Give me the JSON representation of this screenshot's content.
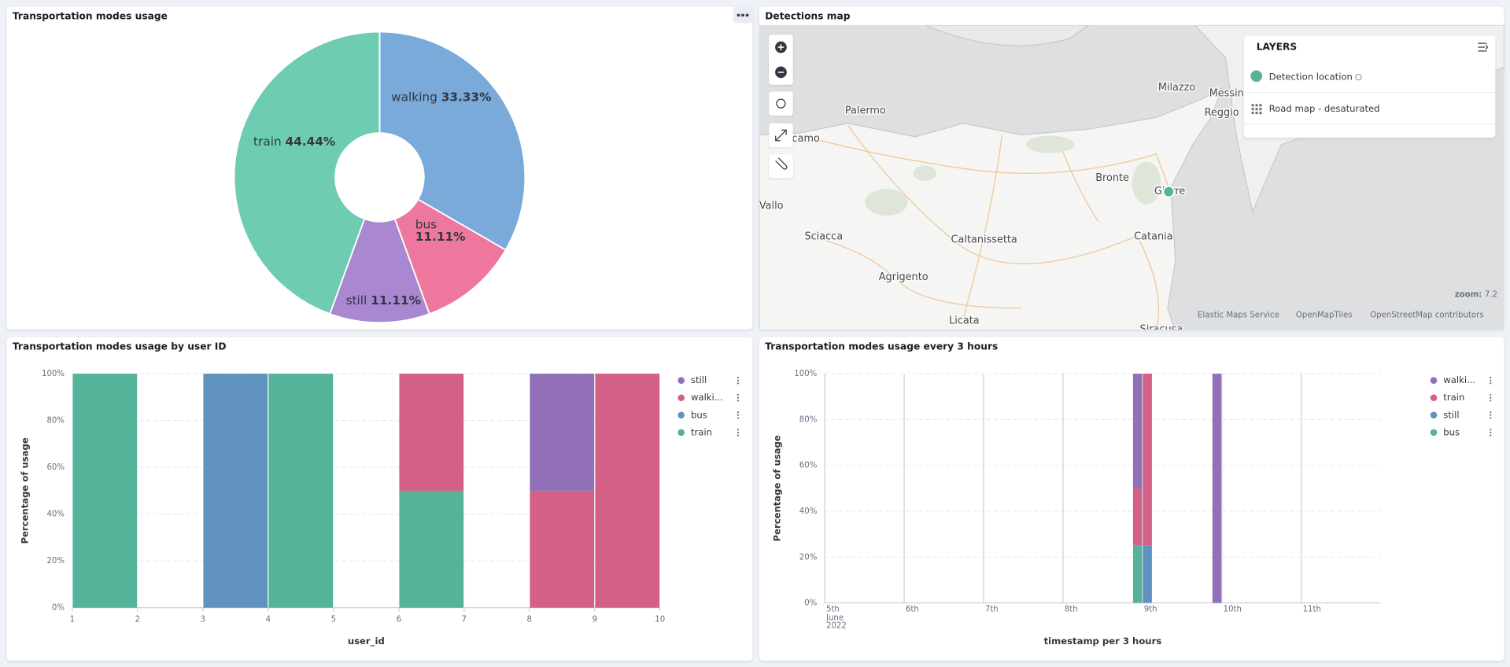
{
  "chart_data": [
    {
      "type": "pie",
      "title": "Transportation modes usage",
      "categories": [
        "walking",
        "bus",
        "still",
        "train"
      ],
      "values": [
        33.33,
        11.11,
        11.11,
        44.44
      ],
      "value_labels": [
        "33.33%",
        "11.11%",
        "11.11%",
        "44.44%"
      ],
      "colors": [
        "#79aad9",
        "#ee789d",
        "#a987d1",
        "#6dccb1"
      ],
      "donut": true
    },
    {
      "type": "histogram",
      "title": "Transportation modes usage by user ID",
      "bins": [
        1,
        2,
        3,
        4,
        5,
        6,
        7,
        8,
        9,
        10
      ],
      "series": [
        {
          "name": "still",
          "color": "#9170b8",
          "values": [
            null,
            null,
            null,
            null,
            null,
            null,
            null,
            50,
            null
          ]
        },
        {
          "name": "walki...",
          "color": "#d36086",
          "values": [
            null,
            null,
            null,
            null,
            null,
            50,
            null,
            50,
            100
          ]
        },
        {
          "name": "bus",
          "color": "#6092c0",
          "values": [
            null,
            null,
            100,
            null,
            null,
            null,
            null,
            null,
            null
          ]
        },
        {
          "name": "train",
          "color": "#54b399",
          "values": [
            100,
            null,
            null,
            100,
            null,
            50,
            null,
            null,
            null
          ]
        }
      ],
      "stacked": true,
      "xlabel": "user_id",
      "ylabel": "Percentage of usage",
      "xlim": [
        1,
        10
      ],
      "xticks": [
        1,
        2,
        3,
        4,
        5,
        6,
        7,
        8,
        9,
        10
      ],
      "ylim": [
        0,
        100
      ],
      "yticks": [
        {
          "value": 0,
          "label": "0%"
        },
        {
          "value": 20,
          "label": "20%"
        },
        {
          "value": 40,
          "label": "40%"
        },
        {
          "value": 60,
          "label": "60%"
        },
        {
          "value": 80,
          "label": "80%"
        },
        {
          "value": 100,
          "label": "100%"
        }
      ],
      "grid": true,
      "legend": "right"
    },
    {
      "type": "histogram",
      "title": "Transportation modes usage every 3 hours",
      "bins": [
        8.875,
        9,
        9.125,
        9.25,
        9.375,
        9.5,
        9.625,
        9.75,
        9.875,
        10
      ],
      "series": [
        {
          "name": "walki...",
          "color": "#9170b8",
          "values": [
            50,
            null,
            null,
            null,
            null,
            null,
            null,
            null,
            100
          ]
        },
        {
          "name": "train",
          "color": "#d36086",
          "values": [
            25,
            75,
            null,
            null,
            null,
            null,
            null,
            null,
            null
          ]
        },
        {
          "name": "still",
          "color": "#6092c0",
          "values": [
            null,
            25,
            null,
            null,
            null,
            null,
            null,
            null,
            null
          ]
        },
        {
          "name": "bus",
          "color": "#54b399",
          "values": [
            25,
            null,
            null,
            null,
            null,
            null,
            null,
            null,
            null
          ]
        }
      ],
      "stacked": true,
      "xlabel": "timestamp per 3 hours",
      "ylabel": "Percentage of usage",
      "xlim": [
        5,
        12
      ],
      "xticks": [
        {
          "value": 5,
          "label": "5th June 2022"
        },
        {
          "value": 6,
          "label": "6th"
        },
        {
          "value": 7,
          "label": "7th"
        },
        {
          "value": 8,
          "label": "8th"
        },
        {
          "value": 9,
          "label": "9th"
        },
        {
          "value": 10,
          "label": "10th"
        },
        {
          "value": 11,
          "label": "11th"
        }
      ],
      "ylim": [
        0,
        100
      ],
      "yticks": [
        {
          "value": 0,
          "label": "0%"
        },
        {
          "value": 20,
          "label": "20%"
        },
        {
          "value": 40,
          "label": "40%"
        },
        {
          "value": 60,
          "label": "60%"
        },
        {
          "value": 80,
          "label": "80%"
        },
        {
          "value": 100,
          "label": "100%"
        }
      ],
      "grid": true,
      "legend": "right"
    }
  ],
  "map": {
    "title": "Detections map",
    "layers_title": "LAYERS",
    "layers": [
      "Detection location",
      "Road map - desaturated"
    ],
    "places": [
      "Milazzo",
      "Messin",
      "Reggio",
      "Palermo",
      "camo",
      "Bronte",
      "Giarre",
      "Vallo",
      "Sciacca",
      "Caltanissetta",
      "Catania",
      "Agrigento",
      "Licata",
      "Siracusa"
    ],
    "zoom_label": "zoom:",
    "zoom": 7.2,
    "attribution": [
      "Elastic Maps Service",
      "OpenMapTiles",
      "OpenStreetMap contributors"
    ]
  }
}
